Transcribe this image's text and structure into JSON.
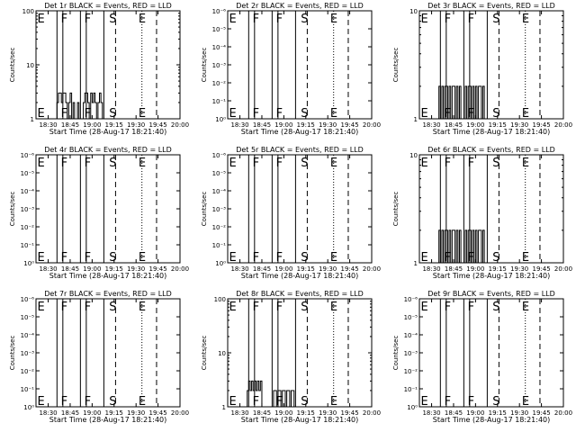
{
  "figure": {
    "background": "#ffffff",
    "foreground": "#000000"
  },
  "chart_data": [
    {
      "type": "line",
      "title": "Det 1r BLACK = Events, RED = LLD",
      "xlabel": "Start Time (28-Aug-17 18:21:40)",
      "ylabel": "Counts/sec",
      "x_ticks": [
        "18:30",
        "18:45",
        "19:00",
        "19:15",
        "19:30",
        "19:45",
        "20:00"
      ],
      "y_scale": "log",
      "y_ticks": [
        "1",
        "10",
        "100"
      ],
      "ylim": [
        1,
        100
      ],
      "xlim": [
        "18:21:40",
        "20:00:00"
      ],
      "region_labels": [
        {
          "text": "E",
          "x": "18:22"
        },
        {
          "text": "F",
          "x": "18:38"
        },
        {
          "text": "F",
          "x": "18:54"
        },
        {
          "text": "S",
          "x": "19:11"
        },
        {
          "text": "E",
          "x": "19:31"
        }
      ],
      "vlines": [
        {
          "x": "18:36",
          "style": "solid"
        },
        {
          "x": "18:40",
          "style": "solid"
        },
        {
          "x": "18:52",
          "style": "solid"
        },
        {
          "x": "18:56",
          "style": "solid"
        },
        {
          "x": "19:08",
          "style": "solid"
        },
        {
          "x": "19:16",
          "style": "dashed"
        },
        {
          "x": "19:34",
          "style": "dotted"
        },
        {
          "x": "19:44",
          "style": "dashed"
        }
      ],
      "series": [
        {
          "color": "#000000",
          "segments": [
            {
              "x": [
                "18:35",
                "18:36",
                "18:37",
                "18:38",
                "18:39",
                "18:40",
                "18:41",
                "18:42",
                "18:43",
                "18:44",
                "18:45",
                "18:46",
                "18:47",
                "18:48",
                "18:49",
                "18:50"
              ],
              "y": [
                1,
                2,
                3,
                3,
                2,
                3,
                3,
                2,
                1,
                2,
                3,
                1,
                2,
                1,
                1,
                2
              ]
            },
            {
              "x": [
                "18:53",
                "18:54",
                "18:55",
                "18:56",
                "18:57",
                "18:58",
                "18:59",
                "19:00",
                "19:01",
                "19:02",
                "19:03",
                "19:04",
                "19:05",
                "19:06"
              ],
              "y": [
                1,
                2,
                3,
                3,
                2,
                1,
                3,
                2,
                3,
                2,
                1,
                2,
                3,
                2
              ]
            }
          ]
        }
      ]
    },
    {
      "type": "line",
      "title": "Det 2r BLACK = Events, RED = LLD",
      "xlabel": "Start Time (28-Aug-17 18:21:40)",
      "ylabel": "Counts/sec",
      "x_ticks": [
        "18:30",
        "18:45",
        "19:00",
        "19:15",
        "19:30",
        "19:45",
        "20:00"
      ],
      "y_scale": "log",
      "y_ticks": [
        "10⁰",
        "10⁻¹",
        "10⁻²",
        "10⁻³",
        "10⁻⁴",
        "10⁻⁵",
        "10⁻⁶"
      ],
      "ylim": [
        1e-06,
        1
      ],
      "region_labels": [
        {
          "text": "E",
          "x": "18:22"
        },
        {
          "text": "F",
          "x": "18:38"
        },
        {
          "text": "F",
          "x": "18:54"
        },
        {
          "text": "S",
          "x": "19:11"
        },
        {
          "text": "E",
          "x": "19:31"
        }
      ],
      "vlines": [
        {
          "x": "18:36",
          "style": "solid"
        },
        {
          "x": "18:40",
          "style": "solid"
        },
        {
          "x": "18:52",
          "style": "solid"
        },
        {
          "x": "18:56",
          "style": "solid"
        },
        {
          "x": "19:08",
          "style": "solid"
        },
        {
          "x": "19:16",
          "style": "dashed"
        },
        {
          "x": "19:34",
          "style": "dotted"
        },
        {
          "x": "19:44",
          "style": "dashed"
        }
      ],
      "series": []
    },
    {
      "type": "line",
      "title": "Det 3r BLACK = Events, RED = LLD",
      "xlabel": "Start Time (28-Aug-17 18:21:40)",
      "ylabel": "Counts/sec",
      "x_ticks": [
        "18:30",
        "18:45",
        "19:00",
        "19:15",
        "19:30",
        "19:45",
        "20:00"
      ],
      "y_scale": "log",
      "y_ticks": [
        "1",
        "10"
      ],
      "ylim": [
        1,
        10
      ],
      "region_labels": [
        {
          "text": "E",
          "x": "18:22"
        },
        {
          "text": "F",
          "x": "18:38"
        },
        {
          "text": "F",
          "x": "18:54"
        },
        {
          "text": "S",
          "x": "19:11"
        },
        {
          "text": "E",
          "x": "19:31"
        }
      ],
      "vlines": [
        {
          "x": "18:36",
          "style": "solid"
        },
        {
          "x": "18:40",
          "style": "solid"
        },
        {
          "x": "18:52",
          "style": "solid"
        },
        {
          "x": "18:56",
          "style": "solid"
        },
        {
          "x": "19:08",
          "style": "solid"
        },
        {
          "x": "19:16",
          "style": "dashed"
        },
        {
          "x": "19:34",
          "style": "dotted"
        },
        {
          "x": "19:44",
          "style": "dashed"
        }
      ],
      "series": [
        {
          "color": "#000000",
          "segments": [
            {
              "x": [
                "18:35",
                "18:36",
                "18:37",
                "18:38",
                "18:39",
                "18:40",
                "18:41",
                "18:42",
                "18:43",
                "18:44",
                "18:45",
                "18:46",
                "18:47",
                "18:48",
                "18:49",
                "18:50"
              ],
              "y": [
                2,
                1,
                2,
                1,
                2,
                2,
                1,
                2,
                1,
                2,
                2,
                1,
                2,
                1,
                2,
                1
              ]
            },
            {
              "x": [
                "18:53",
                "18:54",
                "18:55",
                "18:56",
                "18:57",
                "18:58",
                "18:59",
                "19:00",
                "19:01",
                "19:02",
                "19:03",
                "19:04",
                "19:05"
              ],
              "y": [
                2,
                1,
                2,
                2,
                1,
                2,
                1,
                2,
                1,
                2,
                2,
                1,
                2
              ]
            }
          ]
        }
      ]
    },
    {
      "type": "line",
      "title": "Det 4r BLACK = Events, RED = LLD",
      "xlabel": "Start Time (28-Aug-17 18:21:40)",
      "ylabel": "Counts/sec",
      "x_ticks": [
        "18:30",
        "18:45",
        "19:00",
        "19:15",
        "19:30",
        "19:45",
        "20:00"
      ],
      "y_scale": "log",
      "y_ticks": [
        "10⁰",
        "10⁻¹",
        "10⁻²",
        "10⁻³",
        "10⁻⁴",
        "10⁻⁵",
        "10⁻⁶"
      ],
      "ylim": [
        1e-06,
        1
      ],
      "region_labels": [
        {
          "text": "E",
          "x": "18:22"
        },
        {
          "text": "F",
          "x": "18:38"
        },
        {
          "text": "F",
          "x": "18:54"
        },
        {
          "text": "S",
          "x": "19:11"
        },
        {
          "text": "E",
          "x": "19:31"
        }
      ],
      "vlines": [
        {
          "x": "18:36",
          "style": "solid"
        },
        {
          "x": "18:40",
          "style": "solid"
        },
        {
          "x": "18:52",
          "style": "solid"
        },
        {
          "x": "18:56",
          "style": "solid"
        },
        {
          "x": "19:08",
          "style": "solid"
        },
        {
          "x": "19:16",
          "style": "dashed"
        },
        {
          "x": "19:34",
          "style": "dotted"
        },
        {
          "x": "19:44",
          "style": "dashed"
        }
      ],
      "series": []
    },
    {
      "type": "line",
      "title": "Det 5r BLACK = Events, RED = LLD",
      "xlabel": "Start Time (28-Aug-17 18:21:40)",
      "ylabel": "Counts/sec",
      "x_ticks": [
        "18:30",
        "18:45",
        "19:00",
        "19:15",
        "19:30",
        "19:45",
        "20:00"
      ],
      "y_scale": "log",
      "y_ticks": [
        "10⁰",
        "10⁻¹",
        "10⁻²",
        "10⁻³",
        "10⁻⁴",
        "10⁻⁵",
        "10⁻⁶"
      ],
      "ylim": [
        1e-06,
        1
      ],
      "region_labels": [
        {
          "text": "E",
          "x": "18:22"
        },
        {
          "text": "F",
          "x": "18:38"
        },
        {
          "text": "F",
          "x": "18:54"
        },
        {
          "text": "S",
          "x": "19:11"
        },
        {
          "text": "E",
          "x": "19:31"
        }
      ],
      "vlines": [
        {
          "x": "18:36",
          "style": "solid"
        },
        {
          "x": "18:40",
          "style": "solid"
        },
        {
          "x": "18:52",
          "style": "solid"
        },
        {
          "x": "18:56",
          "style": "solid"
        },
        {
          "x": "19:08",
          "style": "solid"
        },
        {
          "x": "19:16",
          "style": "dashed"
        },
        {
          "x": "19:34",
          "style": "dotted"
        },
        {
          "x": "19:44",
          "style": "dashed"
        }
      ],
      "series": []
    },
    {
      "type": "line",
      "title": "Det 6r BLACK = Events, RED = LLD",
      "xlabel": "Start Time (28-Aug-17 18:21:40)",
      "ylabel": "Counts/sec",
      "x_ticks": [
        "18:30",
        "18:45",
        "19:00",
        "19:15",
        "19:30",
        "19:45",
        "20:00"
      ],
      "y_scale": "log",
      "y_ticks": [
        "1",
        "10"
      ],
      "ylim": [
        1,
        10
      ],
      "region_labels": [
        {
          "text": "E",
          "x": "18:22"
        },
        {
          "text": "F",
          "x": "18:38"
        },
        {
          "text": "F",
          "x": "18:54"
        },
        {
          "text": "S",
          "x": "19:11"
        },
        {
          "text": "E",
          "x": "19:31"
        }
      ],
      "vlines": [
        {
          "x": "18:36",
          "style": "solid"
        },
        {
          "x": "18:40",
          "style": "solid"
        },
        {
          "x": "18:52",
          "style": "solid"
        },
        {
          "x": "18:56",
          "style": "solid"
        },
        {
          "x": "19:08",
          "style": "solid"
        },
        {
          "x": "19:16",
          "style": "dashed"
        },
        {
          "x": "19:34",
          "style": "dotted"
        },
        {
          "x": "19:44",
          "style": "dashed"
        }
      ],
      "series": [
        {
          "color": "#000000",
          "segments": [
            {
              "x": [
                "18:35",
                "18:36",
                "18:37",
                "18:38",
                "18:39",
                "18:40",
                "18:41",
                "18:42",
                "18:43",
                "18:44",
                "18:45",
                "18:46",
                "18:47",
                "18:48",
                "18:49",
                "18:50"
              ],
              "y": [
                2,
                1,
                2,
                1,
                2,
                2,
                1,
                2,
                1,
                2,
                2,
                1,
                2,
                1,
                2,
                1
              ]
            },
            {
              "x": [
                "18:53",
                "18:54",
                "18:55",
                "18:56",
                "18:57",
                "18:58",
                "18:59",
                "19:00",
                "19:01",
                "19:02",
                "19:03",
                "19:04",
                "19:05"
              ],
              "y": [
                2,
                1,
                2,
                2,
                1,
                2,
                1,
                2,
                1,
                2,
                2,
                1,
                2
              ]
            }
          ]
        }
      ]
    },
    {
      "type": "line",
      "title": "Det 7r BLACK = Events, RED = LLD",
      "xlabel": "Start Time (28-Aug-17 18:21:40)",
      "ylabel": "Counts/sec",
      "x_ticks": [
        "18:30",
        "18:45",
        "19:00",
        "19:15",
        "19:30",
        "19:45",
        "20:00"
      ],
      "y_scale": "log",
      "y_ticks": [
        "10⁰",
        "10⁻¹",
        "10⁻²",
        "10⁻³",
        "10⁻⁴",
        "10⁻⁵",
        "10⁻⁶"
      ],
      "ylim": [
        1e-06,
        1
      ],
      "region_labels": [
        {
          "text": "E",
          "x": "18:22"
        },
        {
          "text": "F",
          "x": "18:38"
        },
        {
          "text": "F",
          "x": "18:54"
        },
        {
          "text": "S",
          "x": "19:11"
        },
        {
          "text": "E",
          "x": "19:31"
        }
      ],
      "vlines": [
        {
          "x": "18:36",
          "style": "solid"
        },
        {
          "x": "18:40",
          "style": "solid"
        },
        {
          "x": "18:52",
          "style": "solid"
        },
        {
          "x": "18:56",
          "style": "solid"
        },
        {
          "x": "19:08",
          "style": "solid"
        },
        {
          "x": "19:16",
          "style": "dashed"
        },
        {
          "x": "19:34",
          "style": "dotted"
        },
        {
          "x": "19:44",
          "style": "dashed"
        }
      ],
      "series": []
    },
    {
      "type": "line",
      "title": "Det 8r BLACK = Events, RED = LLD",
      "xlabel": "Start Time (28-Aug-17 18:21:40)",
      "ylabel": "Counts/sec",
      "x_ticks": [
        "18:30",
        "18:45",
        "19:00",
        "19:15",
        "19:30",
        "19:45",
        "20:00"
      ],
      "y_scale": "log",
      "y_ticks": [
        "1",
        "10",
        "100"
      ],
      "ylim": [
        1,
        100
      ],
      "region_labels": [
        {
          "text": "E",
          "x": "18:22"
        },
        {
          "text": "F",
          "x": "18:38"
        },
        {
          "text": "F",
          "x": "18:54"
        },
        {
          "text": "S",
          "x": "19:11"
        },
        {
          "text": "E",
          "x": "19:31"
        }
      ],
      "vlines": [
        {
          "x": "18:36",
          "style": "solid"
        },
        {
          "x": "18:40",
          "style": "solid"
        },
        {
          "x": "18:52",
          "style": "solid"
        },
        {
          "x": "18:56",
          "style": "solid"
        },
        {
          "x": "19:08",
          "style": "solid"
        },
        {
          "x": "19:16",
          "style": "dashed"
        },
        {
          "x": "19:34",
          "style": "dotted"
        },
        {
          "x": "19:44",
          "style": "dashed"
        }
      ],
      "series": [
        {
          "color": "#000000",
          "segments": [
            {
              "x": [
                "18:35",
                "18:36",
                "18:37",
                "18:38",
                "18:39",
                "18:40",
                "18:41",
                "18:42",
                "18:43",
                "18:44"
              ],
              "y": [
                2,
                3,
                2,
                3,
                2,
                3,
                2,
                3,
                2,
                3
              ]
            },
            {
              "x": [
                "18:53",
                "18:54",
                "18:55",
                "18:56",
                "18:57",
                "18:58",
                "18:59",
                "19:00",
                "19:01",
                "19:02",
                "19:03",
                "19:04",
                "19:05",
                "19:06"
              ],
              "y": [
                2,
                2,
                1,
                2,
                2,
                1,
                2,
                2,
                1,
                2,
                2,
                1,
                2,
                2
              ]
            }
          ]
        }
      ]
    },
    {
      "type": "line",
      "title": "Det 9r BLACK = Events, RED = LLD",
      "xlabel": "Start Time (28-Aug-17 18:21:40)",
      "ylabel": "Counts/sec",
      "x_ticks": [
        "18:30",
        "18:45",
        "19:00",
        "19:15",
        "19:30",
        "19:45",
        "20:00"
      ],
      "y_scale": "log",
      "y_ticks": [
        "10⁰",
        "10⁻¹",
        "10⁻²",
        "10⁻³",
        "10⁻⁴",
        "10⁻⁵",
        "10⁻⁶"
      ],
      "ylim": [
        1e-06,
        1
      ],
      "region_labels": [
        {
          "text": "E",
          "x": "18:22"
        },
        {
          "text": "F",
          "x": "18:38"
        },
        {
          "text": "F",
          "x": "18:54"
        },
        {
          "text": "S",
          "x": "19:11"
        },
        {
          "text": "E",
          "x": "19:31"
        }
      ],
      "vlines": [
        {
          "x": "18:36",
          "style": "solid"
        },
        {
          "x": "18:40",
          "style": "solid"
        },
        {
          "x": "18:52",
          "style": "solid"
        },
        {
          "x": "18:56",
          "style": "solid"
        },
        {
          "x": "19:08",
          "style": "solid"
        },
        {
          "x": "19:16",
          "style": "dashed"
        },
        {
          "x": "19:34",
          "style": "dotted"
        },
        {
          "x": "19:44",
          "style": "dashed"
        }
      ],
      "series": []
    }
  ]
}
